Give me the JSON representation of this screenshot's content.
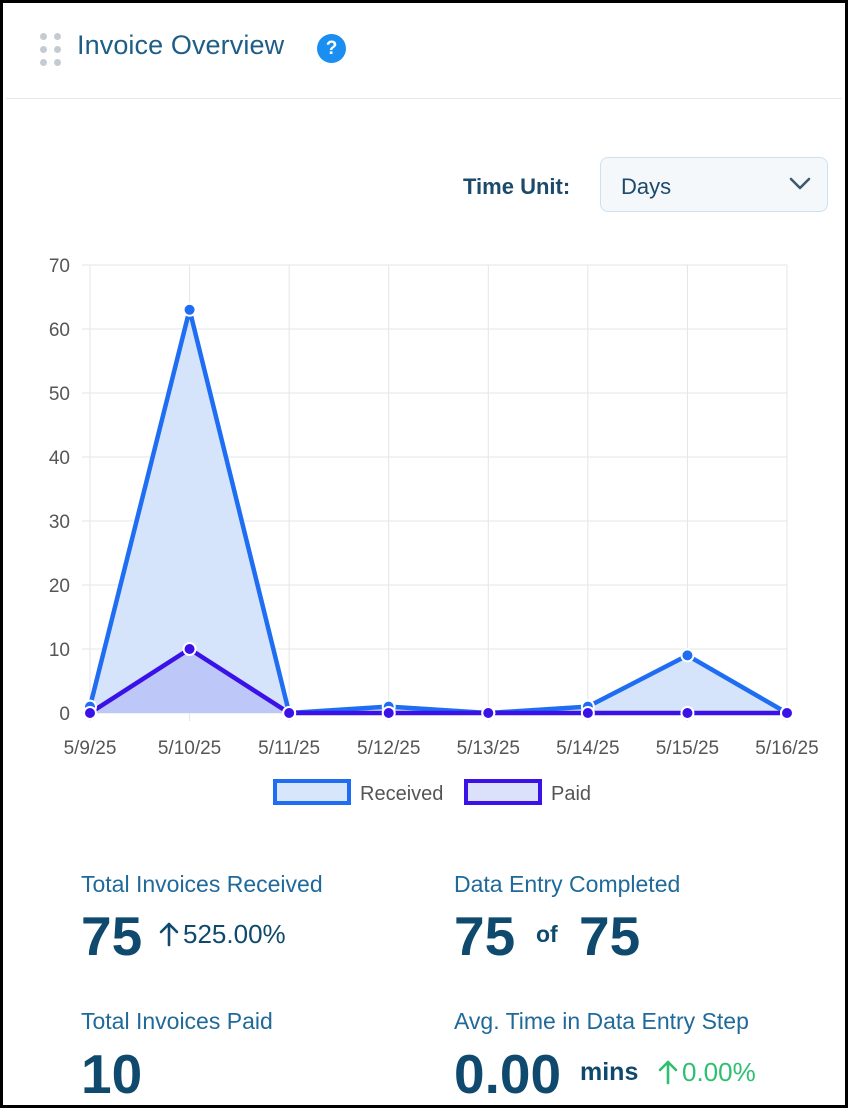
{
  "header": {
    "title": "Invoice Overview",
    "help_icon": "?"
  },
  "controls": {
    "time_unit_label": "Time Unit:",
    "time_unit_value": "Days"
  },
  "chart_data": {
    "type": "area",
    "x": [
      "5/9/25",
      "5/10/25",
      "5/11/25",
      "5/12/25",
      "5/13/25",
      "5/14/25",
      "5/15/25",
      "5/16/25"
    ],
    "series": [
      {
        "name": "Received",
        "values": [
          1,
          63,
          0,
          1,
          0,
          1,
          9,
          0
        ],
        "color": "#1f6df2",
        "fill": "#d3e3fb"
      },
      {
        "name": "Paid",
        "values": [
          0,
          10,
          0,
          0,
          0,
          0,
          0,
          0
        ],
        "color": "#3a12e8",
        "fill": "#b8c3f7"
      }
    ],
    "ylim": [
      0,
      70
    ],
    "yticks": [
      "0",
      "10",
      "20",
      "30",
      "40",
      "50",
      "60",
      "70"
    ],
    "grid": true,
    "legend": "bottom"
  },
  "stats": {
    "received": {
      "label": "Total Invoices Received",
      "value": "75",
      "change": "525.00%"
    },
    "data_entry": {
      "label": "Data Entry Completed",
      "value": "75",
      "of": "of",
      "total": "75"
    },
    "paid": {
      "label": "Total Invoices Paid",
      "value": "10"
    },
    "avg_time": {
      "label": "Avg. Time in Data Entry Step",
      "value": "0.00",
      "unit": "mins",
      "change": "0.00%"
    }
  },
  "colors": {
    "accent": "#1b8ef2",
    "title": "#1d5d86",
    "positive": "#2fbf71"
  }
}
